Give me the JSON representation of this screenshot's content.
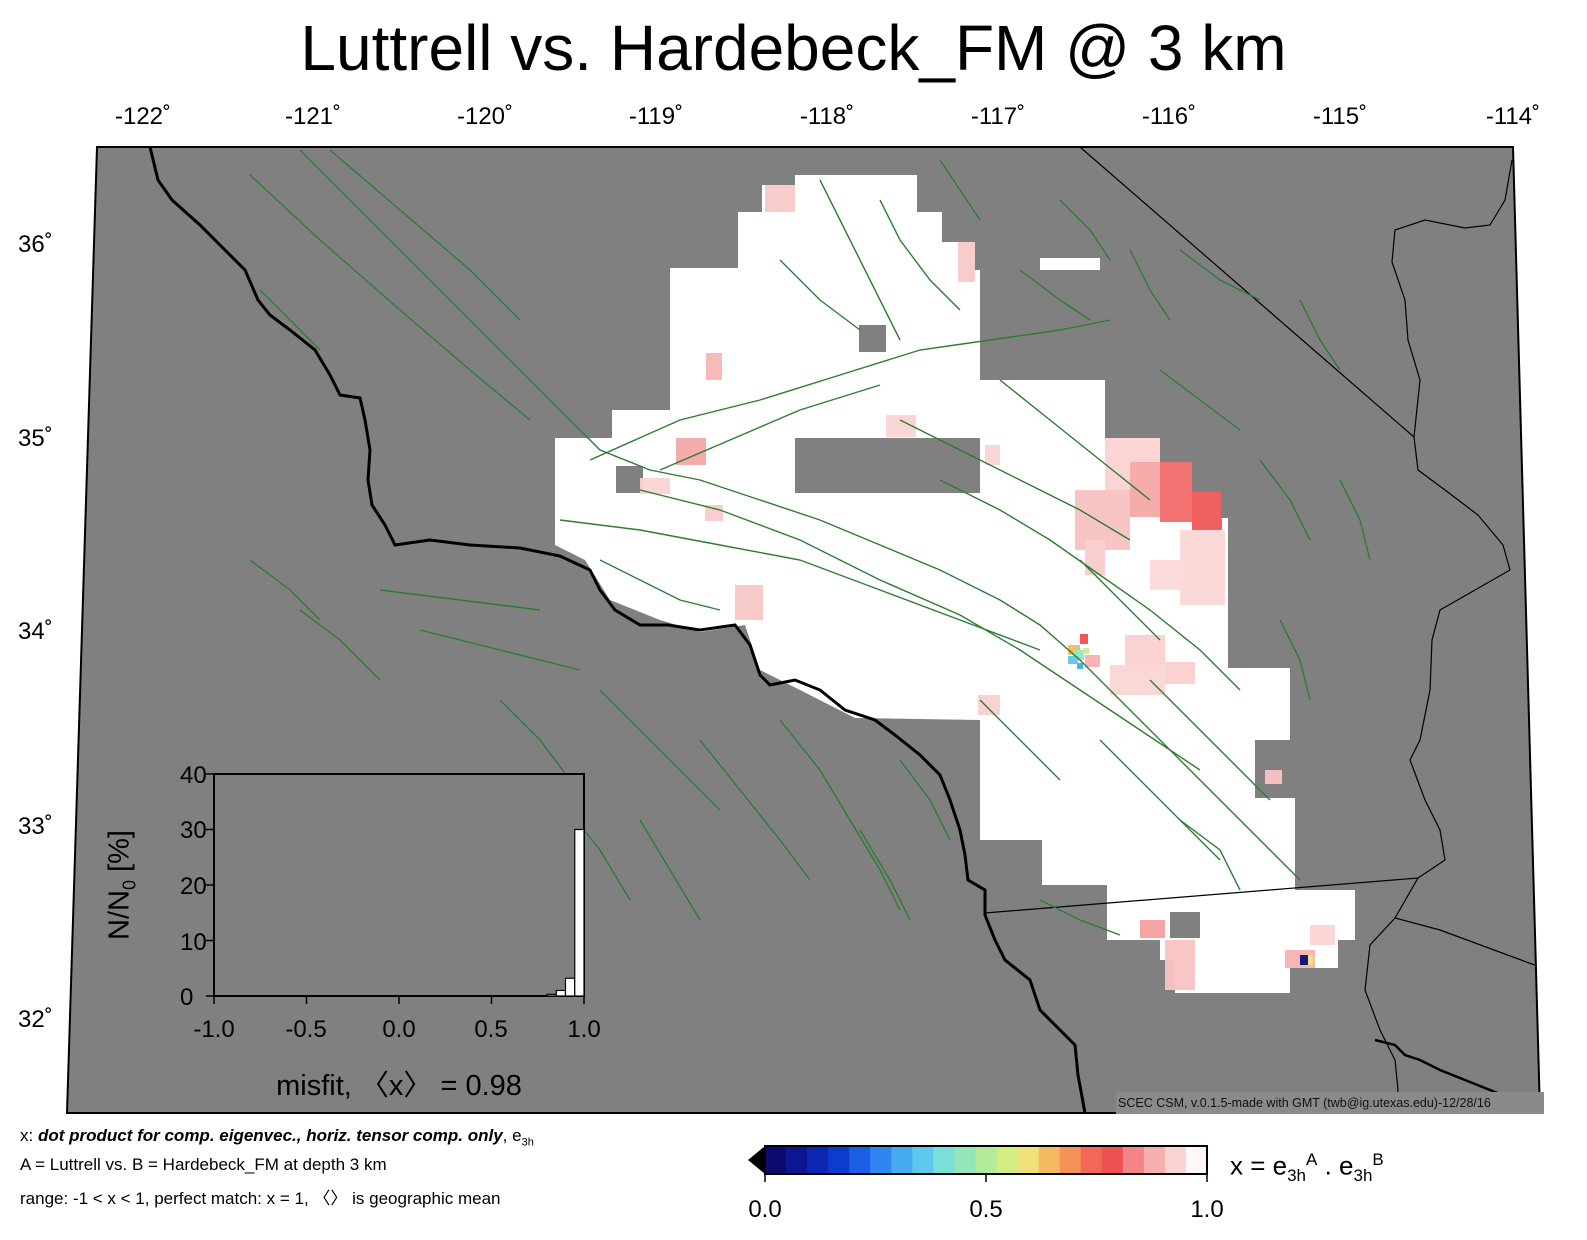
{
  "title": "Luttrell vs. Hardebeck_FM @ 3 km",
  "map": {
    "lon_labels": [
      "-122˚",
      "-121˚",
      "-120˚",
      "-119˚",
      "-118˚",
      "-117˚",
      "-116˚",
      "-115˚",
      "-114˚"
    ],
    "lat_labels": [
      "36˚",
      "35˚",
      "34˚",
      "33˚",
      "32˚"
    ],
    "background_color": "#808080",
    "fault_color": "#2e7d32",
    "coast_color": "#000000",
    "credit": "SCEC CSM, v.0.1.5-made with GMT (twb@ig.utexas.edu)-12/28/16"
  },
  "histogram": {
    "ylabel_main": "N/N",
    "ylabel_sub": "0",
    "ylabel_tail": " [%]",
    "yticks": [
      "40",
      "30",
      "20",
      "10",
      "0"
    ],
    "xticks": [
      "-1.0",
      "-0.5",
      "0.0",
      "0.5",
      "1.0"
    ],
    "xlabel": "misfit, 〈x〉 = 0.98"
  },
  "caption": {
    "line1_prefix": "x: ",
    "line1_bold": "dot product for comp. eigenvec., horiz. tensor comp. only",
    "line1_suffix": ", e",
    "line1_sub": "3h",
    "line2": "A = Luttrell vs.  B = Hardebeck_FM at depth 3 km",
    "line3": "range: -1 < x < 1, perfect match: x = 1, 〈〉 is geographic mean"
  },
  "colorbar": {
    "labels": [
      "0.0",
      "0.5",
      "1.0"
    ],
    "colors": [
      "#0b0b6e",
      "#0c1690",
      "#0c28b0",
      "#0d3ccd",
      "#1c5fe6",
      "#2f86f0",
      "#45aaf2",
      "#5ec8ee",
      "#7adfd9",
      "#94e6b9",
      "#b3eb9a",
      "#d4ec84",
      "#eee17a",
      "#f6ba62",
      "#f6915a",
      "#f26758",
      "#ef5050",
      "#f48486",
      "#f7aeae",
      "#fbd3d3",
      "#fff6f6"
    ],
    "formula_x": "x = e",
    "formula_sub1": "3h",
    "formula_sup1": "A",
    "formula_dot": " . e",
    "formula_sub2": "3h",
    "formula_sup2": "B"
  },
  "chart_data": {
    "type": "bar",
    "title": "",
    "xlabel": "misfit, 〈x〉 = 0.98",
    "ylabel": "N/N0 [%]",
    "xlim": [
      -1.0,
      1.0
    ],
    "ylim": [
      0,
      40
    ],
    "bin_width": 0.05,
    "bins": [
      {
        "x0": 0.8,
        "x1": 0.85,
        "value": 0.3
      },
      {
        "x0": 0.85,
        "x1": 0.9,
        "value": 1.0
      },
      {
        "x0": 0.9,
        "x1": 0.95,
        "value": 3.2
      },
      {
        "x0": 0.95,
        "x1": 1.0,
        "value": 30.0
      }
    ],
    "mean": 0.98
  }
}
